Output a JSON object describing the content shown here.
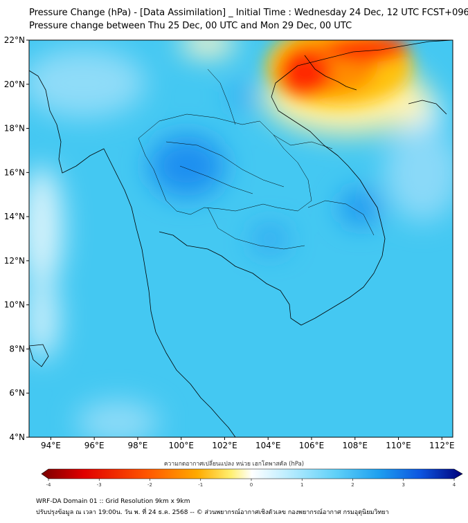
{
  "header": {
    "title_line1": "Pressure Change (hPa) - [Data Assimilation] _ Initial Time : Wednesday 24 Dec, 12 UTC FCST+096",
    "title_line2": "Pressure change between Thu 25 Dec, 00 UTC and Mon 29 Dec, 00 UTC"
  },
  "map": {
    "lat_labels": [
      "22°N",
      "20°N",
      "18°N",
      "16°N",
      "14°N",
      "12°N",
      "10°N",
      "8°N",
      "6°N",
      "4°N"
    ],
    "lon_labels": [
      "94°E",
      "96°E",
      "98°E",
      "100°E",
      "102°E",
      "104°E",
      "106°E",
      "108°E",
      "110°E",
      "112°E"
    ],
    "extent": {
      "lon_min": 93,
      "lon_max": 112.5,
      "lat_min": 4,
      "lat_max": 22
    },
    "field_colors": {
      "base": "#44c8f2",
      "light": "#a6e6fb",
      "strong": "#1f8ff0",
      "positive_hot": "#ff2a00",
      "positive_warm": "#ffc20d"
    }
  },
  "colorbar": {
    "label": "ความกดอากาศเปลี่ยนแปลง หน่วย เฮกโตพาสคัล (hPa)",
    "tick_labels": [
      "-4",
      "-3",
      "-2",
      "-1",
      "0",
      "1",
      "2",
      "3",
      "4"
    ],
    "range": [
      -4,
      4
    ],
    "colors": [
      "#7a0000",
      "#e00000",
      "#ff5500",
      "#ffaa00",
      "#fff070",
      "#ffffff",
      "#bfeeff",
      "#5fd0f8",
      "#1ea0f0",
      "#0d55e0",
      "#00007a"
    ]
  },
  "footer": {
    "line1": "WRF-DA Domain 01 :: Grid Resolution 9km x 9km",
    "line2": "ปรับปรุงข้อมูล ณ เวลา 19:00น. วัน พ. ที่ 24 ธ.ค. 2568 -- © ส่วนพยากรณ์อากาศเชิงตัวเลข กองพยากรณ์อากาศ กรมอุตุนิยมวิทยา"
  }
}
